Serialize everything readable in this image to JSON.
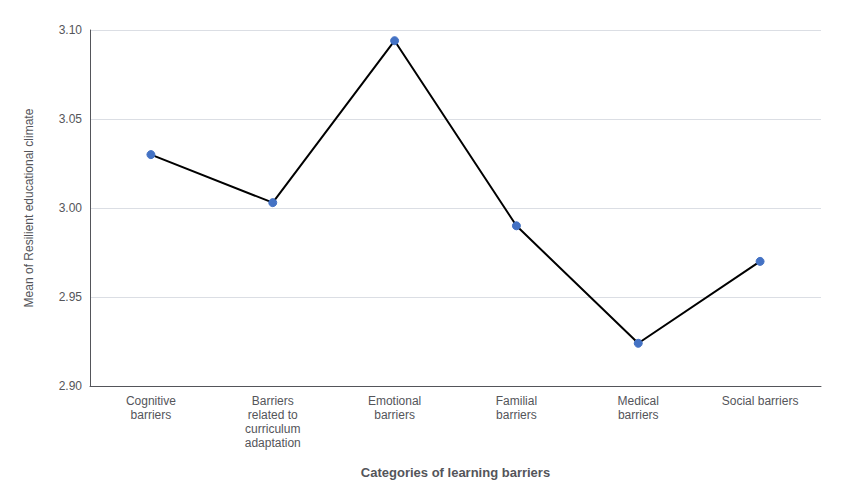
{
  "chart_data": {
    "type": "line",
    "xlabel": "Categories of learning barriers",
    "ylabel": "Mean of Resilient educational climate",
    "categories": [
      "Cognitive\nbarriers",
      "Barriers\nrelated to\ncurriculum\nadaptation",
      "Emotional\nbarriers",
      "Familial\nbarriers",
      "Medical\nbarriers",
      "Social barriers"
    ],
    "values": [
      3.03,
      3.003,
      3.094,
      2.99,
      2.924,
      2.97
    ],
    "color": "#000000",
    "colors": [
      "#4472c4",
      "#4472c4",
      "#4472c4",
      "#4472c4",
      "#4472c4",
      "#4472c4"
    ],
    "marker": "circle",
    "ylim": [
      2.9,
      3.1
    ],
    "yticks": [
      {
        "value": 2.9,
        "label": "2.90"
      },
      2.95,
      {
        "value": 3.0,
        "label": "3.00"
      },
      3.05,
      {
        "value": 3.1,
        "label": "3.10"
      }
    ],
    "grid": true
  }
}
